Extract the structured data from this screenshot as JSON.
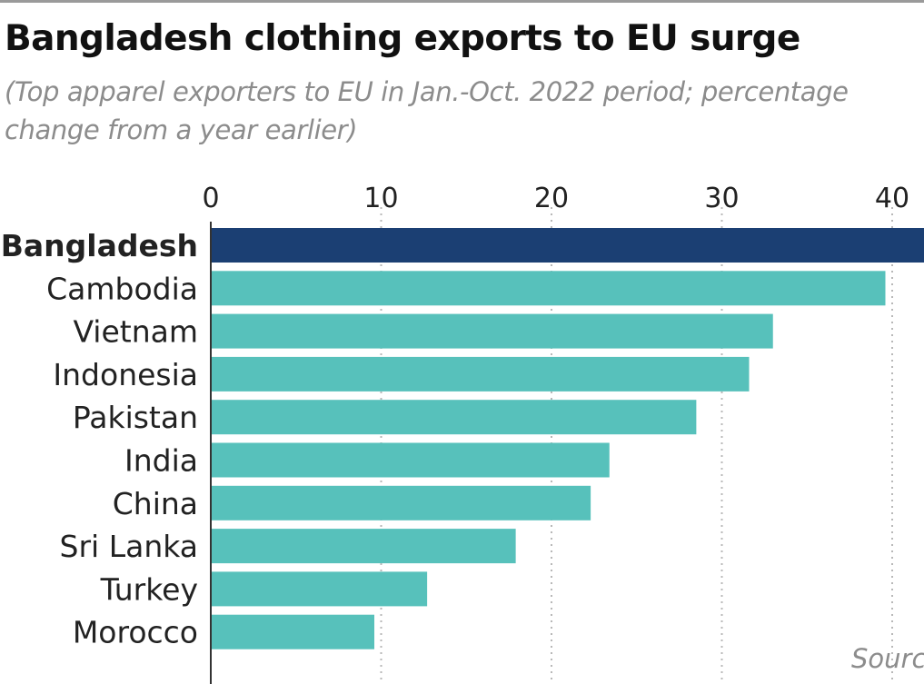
{
  "title": "Bangladesh clothing exports to EU surge",
  "subtitle": "(Top apparel exporters to EU in Jan.-Oct. 2022 period; percentage change from a year earlier)",
  "source_label": "Sourc",
  "chart_data": {
    "type": "bar",
    "orientation": "horizontal",
    "title": "Bangladesh clothing exports to EU surge",
    "subtitle": "(Top apparel exporters to EU in Jan.-Oct. 2022 period; percentage change from a year earlier)",
    "categories": [
      "Bangladesh",
      "Cambodia",
      "Vietnam",
      "Indonesia",
      "Pakistan",
      "India",
      "China",
      "Sri Lanka",
      "Turkey",
      "Morocco"
    ],
    "values": [
      42,
      39.6,
      33.0,
      31.6,
      28.5,
      23.4,
      22.3,
      17.9,
      12.7,
      9.6
    ],
    "highlight": "Bangladesh",
    "xticks": [
      0,
      10,
      20,
      30,
      40
    ],
    "xlim": [
      0,
      42
    ],
    "grid": true,
    "grid_style": "dotted vertical",
    "xaxis_position": "top",
    "colors": {
      "highlight": "#1b3f73",
      "default": "#57c1bb",
      "grid": "#b8b8b8",
      "axis": "#333333"
    }
  }
}
